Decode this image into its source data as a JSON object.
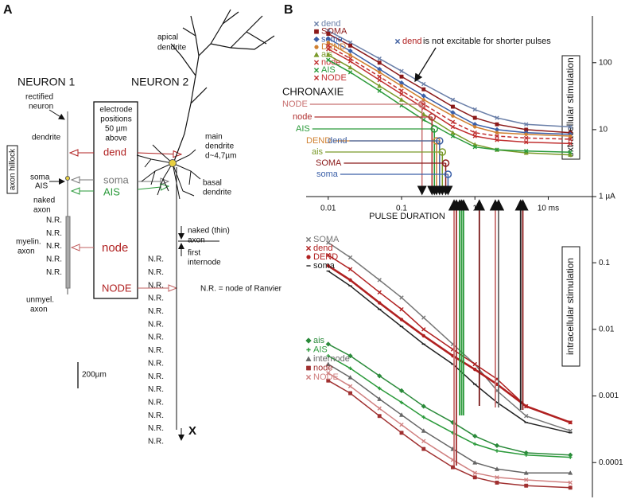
{
  "panel_a": {
    "label": "A",
    "neuron_1": "NEURON 1",
    "neuron_2": "NEURON 2",
    "apical_dendrite": [
      "apical",
      "dendrite"
    ],
    "rectified_neuron": [
      "rectified",
      "neuron"
    ],
    "electrode_positions": [
      "electrode",
      "positions",
      "50 µm",
      "above"
    ],
    "dendrite": "dendrite",
    "axon_hillock": "axon hillock",
    "soma_ais": [
      "soma",
      "AIS"
    ],
    "naked_axon": [
      "naked",
      "axon"
    ],
    "myelin_axon": [
      "myelin.",
      "axon"
    ],
    "unmyel_axon": [
      "unmyel.",
      "axon"
    ],
    "nr_1": [
      "N.R.",
      "N.R.",
      "N.R.",
      "N.R.",
      "N.R."
    ],
    "electrodes": [
      "dend",
      "soma",
      "AIS",
      "node",
      "NODE"
    ],
    "main_dendrite": [
      "main",
      "dendrite",
      "d~4,7µm"
    ],
    "basal_dendrite": [
      "basal",
      "dendrite"
    ],
    "naked_thin_axon": [
      "naked (thin)",
      "axon"
    ],
    "first_internode": [
      "first",
      "internode"
    ],
    "nr_legend": "N.R. = node of Ranvier",
    "nr_2": [
      "N.R.",
      "N.R.",
      "N.R.",
      "N.R.",
      "N.R.",
      "N.R.",
      "N.R.",
      "N.R.",
      "N.R.",
      "N.R.",
      "N.R.",
      "N.R.",
      "N.R.",
      "N.R.",
      "N.R."
    ],
    "scale_bar": "200µm",
    "x_label": "X"
  },
  "panel_b": {
    "label": "B"
  },
  "chart_data": [
    {
      "type": "line",
      "title": "extracellular stimulation",
      "xscale": "log",
      "yscale": "log",
      "xlabel": "PULSE DURATION",
      "x": [
        0.01,
        0.02,
        0.05,
        0.1,
        0.2,
        0.5,
        1,
        2,
        5,
        20
      ],
      "xlim": [
        0.005,
        40
      ],
      "xticks": [
        0.01,
        0.1,
        1,
        {
          "value": 10,
          "label": "10 ms"
        }
      ],
      "ylim": [
        1,
        500
      ],
      "yticks": [
        {
          "value": 1,
          "label": "1 µA"
        },
        10,
        100
      ],
      "series": [
        {
          "name": "dend",
          "color": "#6a7fa8",
          "marker": "x",
          "values": [
            300,
            200,
            115,
            75,
            48,
            28,
            20,
            15,
            12,
            11
          ]
        },
        {
          "name": "SOMA",
          "color": "#8b1a1a",
          "marker": "square",
          "values": [
            270,
            180,
            100,
            62,
            40,
            22,
            15,
            12,
            10,
            9
          ]
        },
        {
          "name": "soma",
          "color": "#3a5fa8",
          "marker": "diamond",
          "values": [
            230,
            150,
            80,
            50,
            32,
            18,
            12,
            10,
            9,
            8.5
          ]
        },
        {
          "name": "DEND",
          "color": "#d08030",
          "marker": "circle",
          "values": [
            200,
            130,
            72,
            45,
            28,
            16,
            11,
            9,
            8.5,
            8
          ]
        },
        {
          "name": "ais",
          "color": "#7a9a2a",
          "marker": "triangle",
          "values": [
            130,
            85,
            45,
            28,
            17,
            9,
            6,
            5,
            4.5,
            4.2
          ]
        },
        {
          "name": "node",
          "color": "#c03030",
          "marker": "x",
          "values": [
            160,
            105,
            55,
            34,
            21,
            11,
            8,
            7,
            6.5,
            6.2
          ]
        },
        {
          "name": "AIS",
          "color": "#2a9a3a",
          "marker": "x",
          "values": [
            110,
            72,
            38,
            23,
            14,
            8,
            5.5,
            5,
            4.8,
            4.6
          ]
        },
        {
          "name": "NODE",
          "color": "#c03030",
          "marker": "x",
          "dashed": true,
          "values": [
            180,
            115,
            62,
            38,
            24,
            13,
            9,
            8,
            7.5,
            7.2
          ]
        }
      ],
      "annotation": {
        "marker_label": "dend",
        "text": "is not excitable for shorter pulses"
      },
      "chronaxie": {
        "label": "CHRONAXIE",
        "items": [
          {
            "name": "NODE",
            "color": "#c87070",
            "value": 0.19
          },
          {
            "name": "node",
            "color": "#b03030",
            "value": 0.26
          },
          {
            "name": "AIS",
            "color": "#2a9a3a",
            "value": 0.28
          },
          {
            "name": "DEND",
            "color": "#d08030",
            "value": 0.3
          },
          {
            "name": "dend",
            "color": "#4060a0",
            "value": 0.33
          },
          {
            "name": "ais",
            "color": "#7a9a2a",
            "value": 0.36
          },
          {
            "name": "SOMA",
            "color": "#8b1a1a",
            "value": 0.4
          },
          {
            "name": "soma",
            "color": "#3a5fa8",
            "value": 0.43
          }
        ]
      }
    },
    {
      "type": "line",
      "title": "intracellular stimulation",
      "xscale": "log",
      "yscale": "log",
      "x": [
        0.01,
        0.02,
        0.05,
        0.1,
        0.2,
        0.5,
        1,
        2,
        5,
        20
      ],
      "xlim": [
        0.005,
        40
      ],
      "ylim": [
        3e-05,
        0.6
      ],
      "yticks": [
        0.0001,
        0.001,
        0.01,
        0.1
      ],
      "series": [
        {
          "name": "SOMA",
          "color": "#777777",
          "marker": "x",
          "values": [
            0.2,
            0.12,
            0.055,
            0.03,
            0.015,
            0.006,
            0.003,
            0.0012,
            0.0005,
            0.0003
          ]
        },
        {
          "name": "dend",
          "color": "#b02020",
          "marker": "x",
          "values": [
            0.13,
            0.08,
            0.036,
            0.02,
            0.01,
            0.005,
            0.003,
            0.0018,
            0.0007,
            0.0004
          ]
        },
        {
          "name": "DEND",
          "color": "#b02020",
          "marker": "circle",
          "thick": true,
          "values": [
            0.09,
            0.055,
            0.025,
            0.014,
            0.008,
            0.004,
            0.0025,
            0.0015,
            0.0007,
            0.0004
          ]
        },
        {
          "name": "soma",
          "color": "#222222",
          "marker": "dash",
          "values": [
            0.075,
            0.045,
            0.02,
            0.011,
            0.006,
            0.003,
            0.0015,
            0.0008,
            0.0004,
            0.00028
          ]
        },
        {
          "name": "ais",
          "color": "#2a8a3a",
          "marker": "diamond",
          "values": [
            0.006,
            0.004,
            0.002,
            0.0012,
            0.0007,
            0.0004,
            0.00025,
            0.00018,
            0.00014,
            0.00013
          ]
        },
        {
          "name": "AIS",
          "color": "#2a9a3a",
          "marker": "plus",
          "values": [
            0.004,
            0.0026,
            0.0013,
            0.0008,
            0.00048,
            0.00028,
            0.00019,
            0.00015,
            0.00013,
            0.00012
          ]
        },
        {
          "name": "internode",
          "color": "#666666",
          "marker": "triangle",
          "values": [
            0.003,
            0.0019,
            0.0009,
            0.00052,
            0.0003,
            0.00016,
            0.0001,
            8e-05,
            7e-05,
            7e-05
          ]
        },
        {
          "name": "node",
          "color": "#a03030",
          "marker": "square",
          "values": [
            0.0017,
            0.0011,
            0.0005,
            0.00028,
            0.00016,
            8.5e-05,
            6e-05,
            5e-05,
            4.5e-05,
            4.2e-05
          ]
        },
        {
          "name": "NODE",
          "color": "#d08080",
          "marker": "x",
          "values": [
            0.0022,
            0.0014,
            0.00065,
            0.00037,
            0.00021,
            0.00011,
            7e-05,
            6e-05,
            5.5e-05,
            5e-05
          ]
        }
      ],
      "chronaxie": {
        "items": [
          {
            "color": "#c87070",
            "value": 0.52
          },
          {
            "color": "#a03030",
            "value": 0.56
          },
          {
            "color": "#2a9a3a",
            "value": 0.62
          },
          {
            "color": "#2a9a3a",
            "value": 0.66
          },
          {
            "color": "#2a9a3a",
            "value": 0.7
          },
          {
            "color": "#7a1a1a",
            "value": 1.15
          },
          {
            "color": "#c87070",
            "value": 1.9
          },
          {
            "color": "#666666",
            "value": 2.1
          },
          {
            "color": "#222222",
            "value": 4.2
          },
          {
            "color": "#8b1a1a",
            "value": 4.5
          }
        ]
      }
    }
  ]
}
